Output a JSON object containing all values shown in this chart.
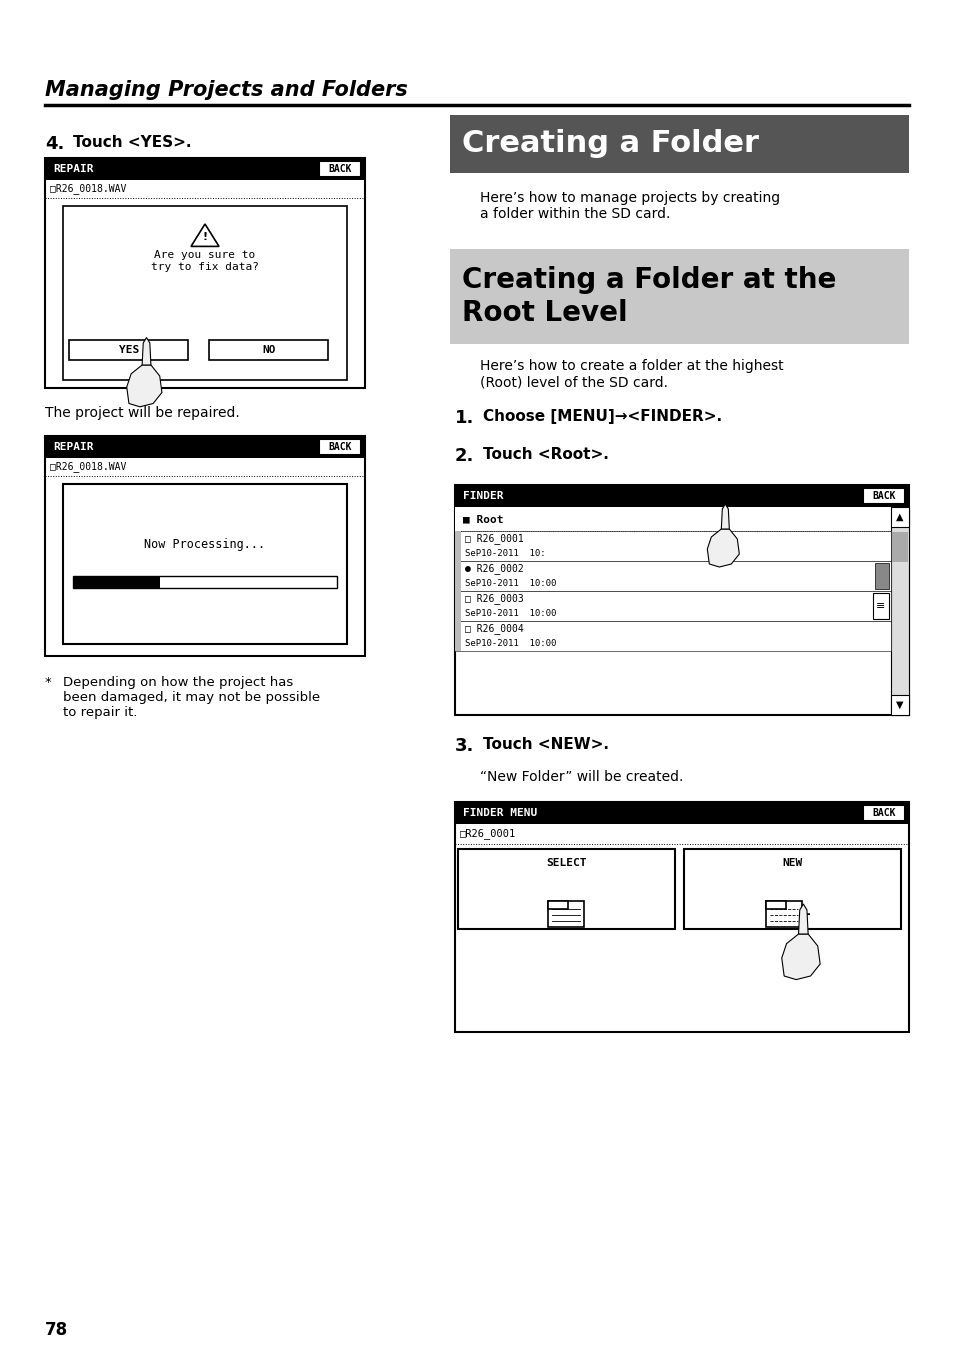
{
  "page_bg": "#ffffff",
  "section_title": "Managing Projects and Folders",
  "h1_title": "Creating a Folder",
  "h1_desc": "Here’s how to manage projects by creating\na folder within the SD card.",
  "h2_title": "Creating a Folder at the\nRoot Level",
  "h2_desc": "Here’s how to create a folder at the highest\n(Root) level of the SD card.",
  "step4_text": "Touch <YES>.",
  "repair_text1": "The project will be repaired.",
  "footnote_star": "*",
  "footnote_text": "Depending on how the project has\nbeen damaged, it may not be possible\nto repair it.",
  "step1_text": "Choose [MENU]→<FINDER>.",
  "step2_text": "Touch <Root>.",
  "step3_text": "Touch <NEW>.",
  "step3_desc": "“New Folder” will be created.",
  "page_number": "78",
  "dark_header_color": "#555555",
  "light_header_color": "#cccccc"
}
